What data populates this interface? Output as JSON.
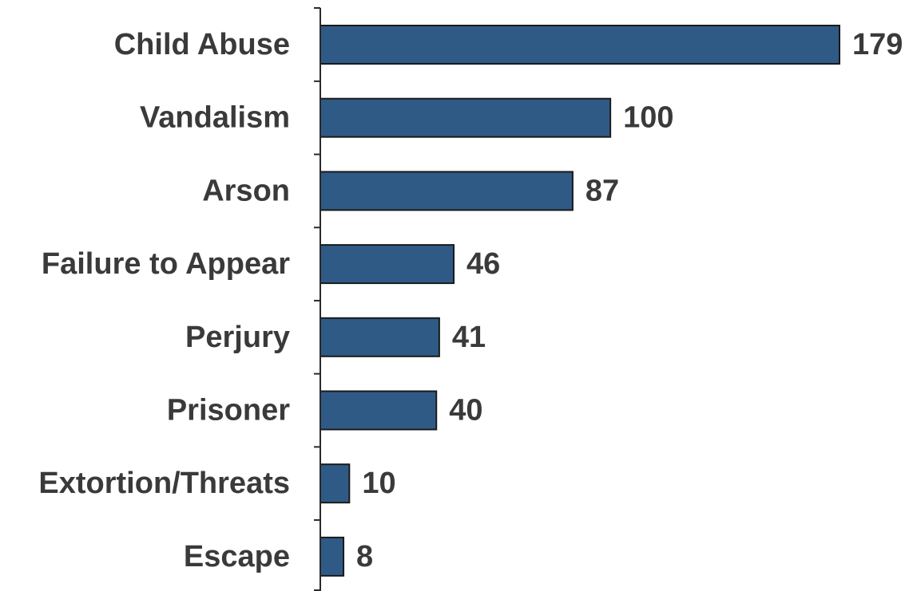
{
  "chart_data": {
    "type": "bar",
    "orientation": "horizontal",
    "categories": [
      "Child Abuse",
      "Vandalism",
      "Arson",
      "Failure to Appear",
      "Perjury",
      "Prisoner",
      "Extortion/Threats",
      "Escape"
    ],
    "values": [
      179,
      100,
      87,
      46,
      41,
      40,
      10,
      8
    ],
    "title": "",
    "xlabel": "",
    "ylabel": "",
    "xlim": [
      0,
      179
    ],
    "grid": false,
    "legend": "none",
    "data_labels": true,
    "bar_color": "#2f5a86",
    "bar_edge_color": "#1a1a1a",
    "text_color": "#3a3a3a",
    "axis_color": "#2a2a2a"
  }
}
